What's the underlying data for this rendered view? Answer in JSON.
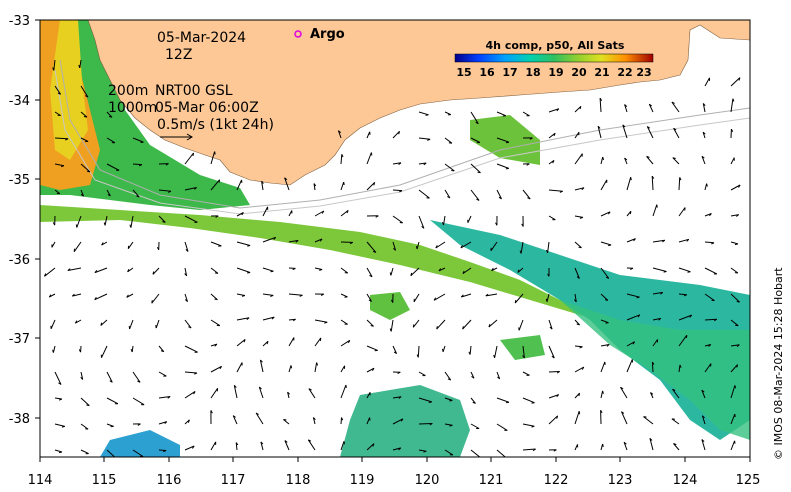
{
  "map": {
    "lon_ticks": [
      "114",
      "115",
      "116",
      "117",
      "118",
      "119",
      "120",
      "121",
      "122",
      "123",
      "124",
      "125"
    ],
    "lat_ticks": [
      "-33",
      "-34",
      "-35",
      "-36",
      "-37",
      "-38"
    ],
    "land_color": "#fdc896",
    "ocean_color": "#ffffff",
    "lon_range": [
      114,
      125
    ],
    "lat_range": [
      -38.5,
      -33
    ]
  },
  "annotations": {
    "date": "05-Mar-2024",
    "hour": "12Z",
    "depth_200": "200m",
    "product": "NRT00 GSL",
    "depth_1000": "1000m",
    "altimetry_time": "05-Mar 06:00Z",
    "scale_vector": "0.5m/s (1kt 24h)",
    "argo_label": "Argo"
  },
  "colorbar": {
    "title": "4h comp, p50, All Sats",
    "labels": [
      "15",
      "16",
      "17",
      "18",
      "19",
      "20",
      "21",
      "22",
      "23"
    ],
    "colors": [
      "#00008b",
      "#0040ff",
      "#00a0ff",
      "#00d0b0",
      "#30c060",
      "#90d030",
      "#e0e020",
      "#ff9000",
      "#e03000",
      "#a00000"
    ]
  },
  "credit": "© IMOS 08-Mar-2024 15:28 Hobart",
  "icons": {
    "argo_marker": "argo-float-icon",
    "vector": "arrow-icon"
  }
}
